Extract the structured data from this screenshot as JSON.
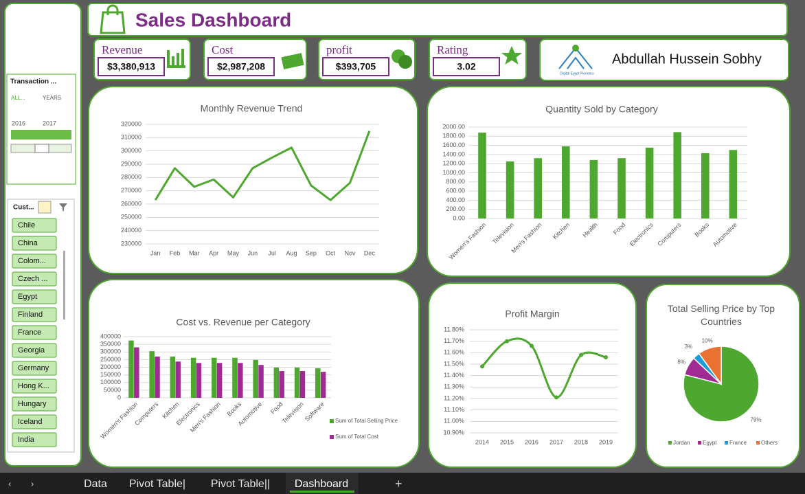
{
  "header": {
    "title": "Sales Dashboard"
  },
  "kpis": [
    {
      "label": "Revenue",
      "value": "$3,380,913"
    },
    {
      "label": "Cost",
      "value": "$2,987,208"
    },
    {
      "label": "profit",
      "value": "$393,705"
    },
    {
      "label": "Rating",
      "value": "3.02"
    }
  ],
  "profile": {
    "logo_text": "Digital Egypt Pioneers",
    "name": "Abdullah Hussein Sobhy"
  },
  "slicers": {
    "transaction": {
      "title": "Transaction ...",
      "all": "ALL...",
      "level": "YEARS",
      "years": [
        "2016",
        "2017"
      ]
    },
    "customer": {
      "title": "Cust...",
      "items": [
        "Chile",
        "China",
        "Colom...",
        "Czech ...",
        "Egypt",
        "Finland",
        "France",
        "Georgia",
        "Germany",
        "Hong K...",
        "Hungary",
        "Iceland",
        "India"
      ]
    }
  },
  "tabs": [
    "Data",
    "Pivot Table|",
    "Pivot Table||",
    "Dashboard"
  ],
  "chart_data": [
    {
      "type": "line",
      "title": "Monthly Revenue Trend",
      "color": "#4ea72e",
      "grid": true,
      "categories": [
        "Jan",
        "Feb",
        "Mar",
        "Apr",
        "May",
        "Jun",
        "Jul",
        "Aug",
        "Sep",
        "Oct",
        "Nov",
        "Dec"
      ],
      "values": [
        263000,
        287000,
        273000,
        278500,
        265000,
        287000,
        295000,
        302500,
        274000,
        263000,
        276000,
        315000
      ],
      "ylim": [
        230000,
        320000
      ],
      "yticks": [
        230000,
        240000,
        250000,
        260000,
        270000,
        280000,
        290000,
        300000,
        310000,
        320000
      ]
    },
    {
      "type": "bar",
      "title": "Quantity Sold by Category",
      "color": "#4ea72e",
      "grid": true,
      "categories": [
        "Women's Fashion",
        "Television",
        "Men's Fashion",
        "Kitchen",
        "Health",
        "Food",
        "Electronics",
        "Computers",
        "Books",
        "Automotive"
      ],
      "values": [
        1880,
        1250,
        1320,
        1580,
        1280,
        1320,
        1550,
        1890,
        1430,
        1500
      ],
      "ylim": [
        0,
        2000
      ],
      "yticks": [
        {
          "value": 0,
          "label": "0.00"
        },
        {
          "value": 200,
          "label": "200.00"
        },
        {
          "value": 400,
          "label": "400.00"
        },
        {
          "value": 600,
          "label": "600.00"
        },
        {
          "value": 800,
          "label": "800.00"
        },
        {
          "value": 1000,
          "label": "1000.00"
        },
        {
          "value": 1200,
          "label": "1200.00"
        },
        {
          "value": 1400,
          "label": "1400.00"
        },
        {
          "value": 1600,
          "label": "1600.00"
        },
        {
          "value": 1800,
          "label": "1800.00"
        },
        {
          "value": 2000,
          "label": "2000.00"
        }
      ]
    },
    {
      "type": "bar",
      "title": "Cost vs. Revenue per Category",
      "grid": true,
      "categories": [
        "Women's Fashion",
        "Computers",
        "Kitchen",
        "Electronics",
        "Men's Fashion",
        "Books",
        "Automotive",
        "Food",
        "Television",
        "Software"
      ],
      "series": [
        {
          "name": "Sum of Total Selling Price",
          "color": "#4ea72e",
          "values": [
            375000,
            305000,
            270000,
            262000,
            262000,
            262000,
            248000,
            198000,
            198000,
            193000
          ]
        },
        {
          "name": "Sum of Total Cost",
          "color": "#a02b93",
          "values": [
            330000,
            270000,
            237000,
            228000,
            228000,
            228000,
            215000,
            175000,
            175000,
            170000
          ]
        }
      ],
      "ylim": [
        0,
        400000
      ],
      "yticks": [
        0,
        50000,
        100000,
        150000,
        200000,
        250000,
        300000,
        350000,
        400000
      ]
    },
    {
      "type": "line",
      "title": "Profit Margin",
      "color": "#4ea72e",
      "grid": true,
      "smooth": true,
      "categories": [
        "2014",
        "2015",
        "2016",
        "2017",
        "2018",
        "2019"
      ],
      "values": [
        11.48,
        11.7,
        11.66,
        11.21,
        11.58,
        11.56
      ],
      "ylim": [
        10.9,
        11.8
      ],
      "yticks": [
        {
          "value": 10.9,
          "label": "10.90%"
        },
        {
          "value": 11.0,
          "label": "11.00%"
        },
        {
          "value": 11.1,
          "label": "11.10%"
        },
        {
          "value": 11.2,
          "label": "11.20%"
        },
        {
          "value": 11.3,
          "label": "11.30%"
        },
        {
          "value": 11.4,
          "label": "11.40%"
        },
        {
          "value": 11.5,
          "label": "11.50%"
        },
        {
          "value": 11.6,
          "label": "11.60%"
        },
        {
          "value": 11.7,
          "label": "11.70%"
        },
        {
          "value": 11.8,
          "label": "11.80%"
        }
      ]
    },
    {
      "type": "pie",
      "title": "Total Selling Price by Top Countries",
      "categories": [
        "Jordan",
        "Egypt",
        "France",
        "Others"
      ],
      "values": [
        79,
        8,
        3,
        10
      ],
      "value_labels": [
        "79%",
        "8%",
        "3%",
        "10%"
      ],
      "colors": [
        "#4ea72e",
        "#a02b93",
        "#1a9ed9",
        "#e97132"
      ]
    }
  ]
}
